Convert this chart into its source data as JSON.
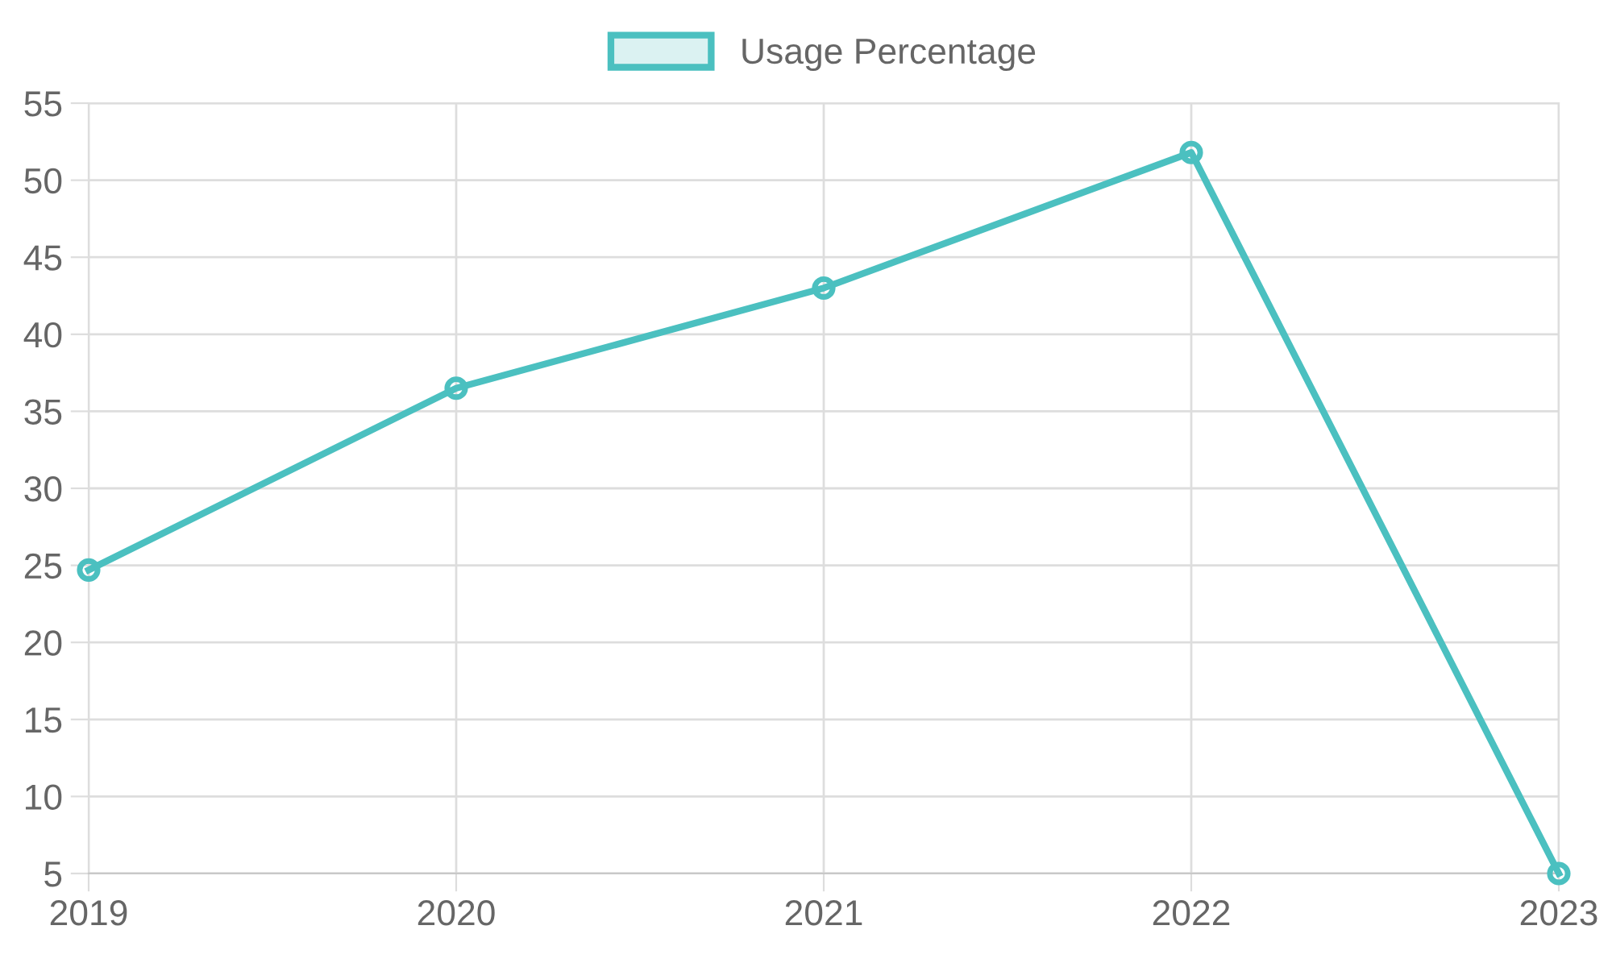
{
  "chart_data": {
    "type": "line",
    "categories": [
      "2019",
      "2020",
      "2021",
      "2022",
      "2023"
    ],
    "series": [
      {
        "name": "Usage Percentage",
        "color": "#4bc0c0",
        "values": [
          24.7,
          36.5,
          43.0,
          51.8,
          5.0
        ]
      }
    ],
    "ylim": [
      5,
      55
    ],
    "yticks": [
      5,
      10,
      15,
      20,
      25,
      30,
      35,
      40,
      45,
      50,
      55
    ],
    "grid": true,
    "legend": "top",
    "marker": "circle",
    "line_style": "solid"
  }
}
